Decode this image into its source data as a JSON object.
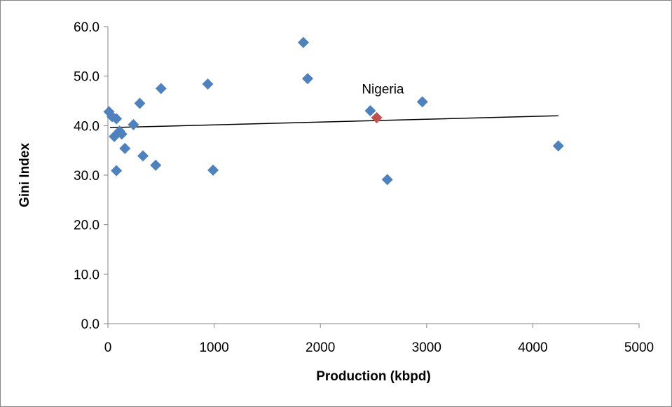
{
  "chart_data": {
    "type": "scatter",
    "title": "",
    "xlabel": "Production (kbpd)",
    "ylabel": "Gini Index",
    "xlim": [
      0,
      5000
    ],
    "ylim": [
      0,
      60
    ],
    "xticks": [
      0,
      1000,
      2000,
      3000,
      4000,
      5000
    ],
    "yticks": [
      0,
      10,
      20,
      30,
      40,
      50,
      60
    ],
    "xtick_labels": [
      "0",
      "1000",
      "2000",
      "3000",
      "4000",
      "5000"
    ],
    "ytick_labels": [
      "0.0",
      "10.0",
      "20.0",
      "30.0",
      "40.0",
      "50.0",
      "60.0"
    ],
    "grid": false,
    "legend": false,
    "series": [
      {
        "marker": "diamond",
        "color": "#4f81bd",
        "points": [
          [
            10,
            42.8
          ],
          [
            40,
            41.8
          ],
          [
            60,
            37.8
          ],
          [
            80,
            41.4
          ],
          [
            80,
            30.9
          ],
          [
            110,
            38.9
          ],
          [
            130,
            38.3
          ],
          [
            160,
            35.4
          ],
          [
            240,
            40.2
          ],
          [
            300,
            44.5
          ],
          [
            330,
            33.9
          ],
          [
            450,
            32.0
          ],
          [
            500,
            47.5
          ],
          [
            940,
            48.4
          ],
          [
            990,
            31.0
          ],
          [
            1840,
            56.8
          ],
          [
            1880,
            49.5
          ],
          [
            2470,
            43.0
          ],
          [
            2630,
            29.1
          ],
          [
            2960,
            44.8
          ],
          [
            4240,
            35.9
          ]
        ]
      },
      {
        "marker": "diamond",
        "color": "#c0504d",
        "points": [
          [
            2530,
            41.6
          ]
        ]
      }
    ],
    "trendline": {
      "color": "#000000",
      "x": [
        20,
        4240
      ],
      "y": [
        39.6,
        42.0
      ]
    },
    "annotations": [
      {
        "text": "Nigeria",
        "x": 2390,
        "y": 46.5
      }
    ]
  }
}
